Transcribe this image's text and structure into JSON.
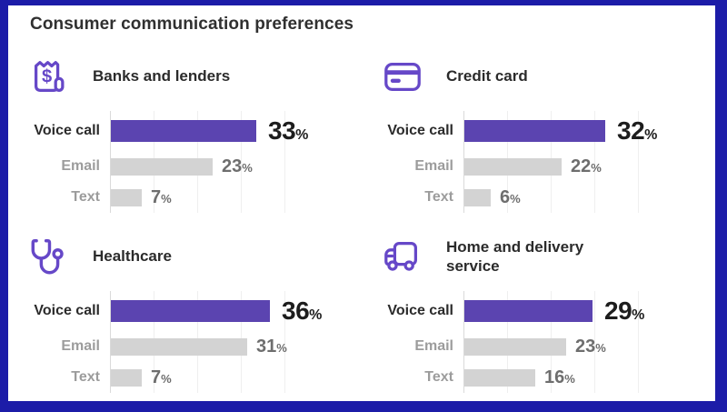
{
  "page_title": "Consumer communication preferences",
  "percent_sign": "%",
  "colors": {
    "border": "#1C1CA8",
    "background": "#FFFFFF",
    "bar_primary": "#5B44B0",
    "bar_secondary": "#D3D3D3",
    "icon": "#6648C8",
    "axis": "#DADADA",
    "grid": "#EFEFEF"
  },
  "chart_data": [
    {
      "type": "bar",
      "orientation": "horizontal",
      "title": "Banks and lenders",
      "icon": "receipt-dollar-icon",
      "categories": [
        "Voice call",
        "Email",
        "Text"
      ],
      "values": [
        33,
        23,
        7
      ],
      "xlim": [
        0,
        40
      ],
      "grid": true,
      "legend": "none"
    },
    {
      "type": "bar",
      "orientation": "horizontal",
      "title": "Credit card",
      "icon": "credit-card-icon",
      "categories": [
        "Voice call",
        "Email",
        "Text"
      ],
      "values": [
        32,
        22,
        6
      ],
      "xlim": [
        0,
        40
      ],
      "grid": true,
      "legend": "none"
    },
    {
      "type": "bar",
      "orientation": "horizontal",
      "title": "Healthcare",
      "icon": "stethoscope-icon",
      "categories": [
        "Voice call",
        "Email",
        "Text"
      ],
      "values": [
        36,
        31,
        7
      ],
      "xlim": [
        0,
        40
      ],
      "grid": true,
      "legend": "none"
    },
    {
      "type": "bar",
      "orientation": "horizontal",
      "title": "Home and delivery service",
      "icon": "delivery-truck-icon",
      "categories": [
        "Voice call",
        "Email",
        "Text"
      ],
      "values": [
        29,
        23,
        16
      ],
      "xlim": [
        0,
        40
      ],
      "grid": true,
      "legend": "none"
    }
  ]
}
